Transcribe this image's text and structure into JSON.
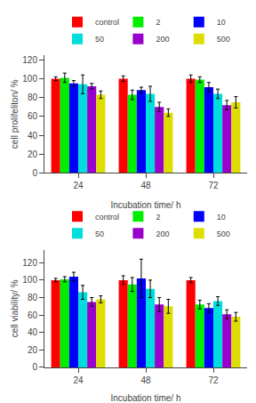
{
  "chart_data": [
    {
      "type": "bar",
      "xlabel": "Incubation time/ h",
      "ylabel": "cell prolifeliton/ %",
      "categories": [
        "24",
        "48",
        "72"
      ],
      "series": [
        {
          "name": "control",
          "color": "#ff0000",
          "values": [
            100,
            100,
            100
          ],
          "errors": [
            2,
            3,
            4
          ]
        },
        {
          "name": "2",
          "color": "#00ee00",
          "values": [
            101,
            83,
            99
          ],
          "errors": [
            5,
            5,
            3
          ]
        },
        {
          "name": "10",
          "color": "#0000ff",
          "values": [
            95,
            88,
            91
          ],
          "errors": [
            3,
            3,
            5
          ]
        },
        {
          "name": "50",
          "color": "#00dddd",
          "values": [
            94,
            84,
            84
          ],
          "errors": [
            10,
            8,
            5
          ]
        },
        {
          "name": "200",
          "color": "#9900cc",
          "values": [
            92,
            70,
            72
          ],
          "errors": [
            3,
            5,
            5
          ]
        },
        {
          "name": "500",
          "color": "#dddd00",
          "values": [
            83,
            64,
            75
          ],
          "errors": [
            4,
            4,
            6
          ]
        }
      ],
      "ylim": [
        0,
        125
      ],
      "yticks": [
        0,
        20,
        40,
        60,
        80,
        100,
        120
      ],
      "grid": false,
      "legend": "upper right"
    },
    {
      "type": "bar",
      "xlabel": "Incubation time/ h",
      "ylabel": "cell viability/ %",
      "categories": [
        "24",
        "48",
        "72"
      ],
      "series": [
        {
          "name": "control",
          "color": "#ff0000",
          "values": [
            100,
            100,
            100
          ],
          "errors": [
            2,
            5,
            3
          ]
        },
        {
          "name": "2",
          "color": "#00ee00",
          "values": [
            101,
            95,
            72
          ],
          "errors": [
            3,
            8,
            5
          ]
        },
        {
          "name": "10",
          "color": "#0000ff",
          "values": [
            104,
            102,
            68
          ],
          "errors": [
            5,
            22,
            5
          ]
        },
        {
          "name": "50",
          "color": "#00dddd",
          "values": [
            86,
            90,
            76
          ],
          "errors": [
            8,
            10,
            5
          ]
        },
        {
          "name": "200",
          "color": "#9900cc",
          "values": [
            75,
            72,
            61
          ],
          "errors": [
            5,
            8,
            5
          ]
        },
        {
          "name": "500",
          "color": "#dddd00",
          "values": [
            78,
            70,
            58
          ],
          "errors": [
            4,
            8,
            5
          ]
        }
      ],
      "ylim": [
        0,
        135
      ],
      "yticks": [
        0,
        20,
        40,
        60,
        80,
        100,
        120
      ],
      "grid": false,
      "legend": "upper right"
    }
  ]
}
